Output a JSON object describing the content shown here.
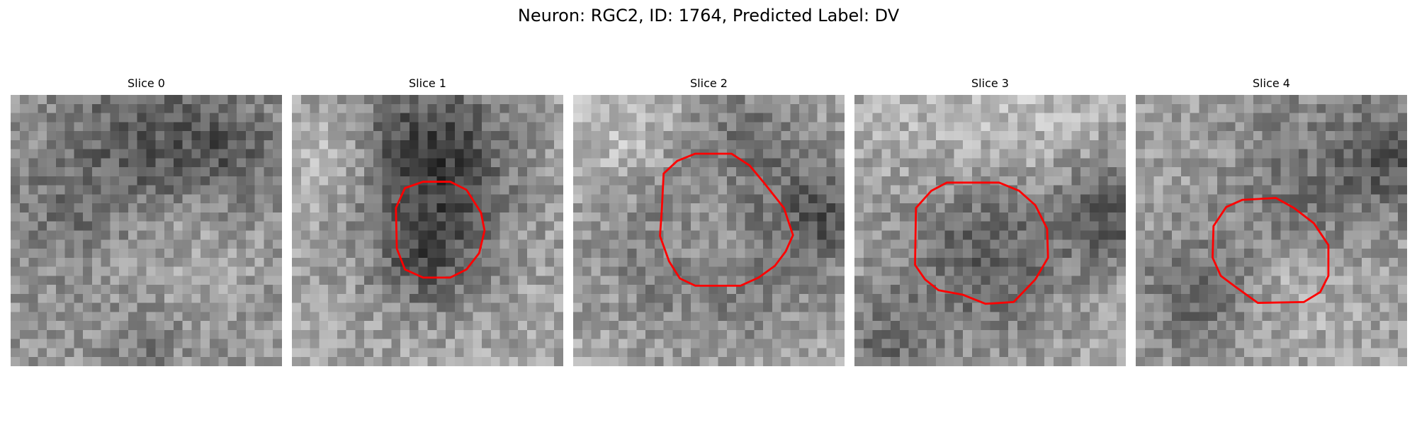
{
  "figure": {
    "title": "Neuron: RGC2, ID: 1764, Predicted Label: DV",
    "contour_color": "#ff0000"
  },
  "panels": [
    {
      "title": "Slice 0",
      "has_contour": false
    },
    {
      "title": "Slice 1",
      "has_contour": true
    },
    {
      "title": "Slice 2",
      "has_contour": true
    },
    {
      "title": "Slice 3",
      "has_contour": true
    },
    {
      "title": "Slice 4",
      "has_contour": true
    }
  ]
}
